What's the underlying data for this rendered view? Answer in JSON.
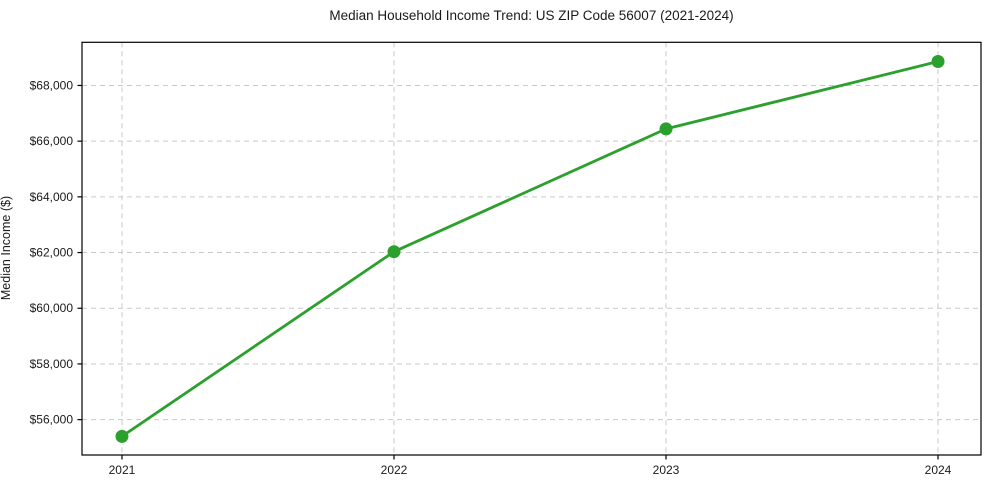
{
  "page": {
    "background_color": "#ffffff"
  },
  "chart_data": {
    "type": "line",
    "title": "Median Household Income Trend: US ZIP Code 56007 (2021-2024)",
    "xlabel": "",
    "ylabel": "Median Income ($)",
    "x": [
      2021,
      2022,
      2023,
      2024
    ],
    "values": [
      55400,
      62030,
      66440,
      68860
    ],
    "x_tick_labels": [
      "2021",
      "2022",
      "2023",
      "2024"
    ],
    "y_ticks": [
      56000,
      58000,
      60000,
      62000,
      64000,
      66000,
      68000
    ],
    "y_tick_labels": [
      "$56,000",
      "$58,000",
      "$60,000",
      "$62,000",
      "$64,000",
      "$66,000",
      "$68,000"
    ],
    "xlim": [
      2020.853,
      2024.158
    ],
    "ylim": [
      54730,
      69550
    ],
    "grid": true,
    "grid_style": "dashed",
    "legend": "none",
    "line_color": "#2ca02c",
    "marker": "circle",
    "grid_color": "#c9c9c9",
    "axis_color": "#000000",
    "text_color": "#1a1a1a"
  }
}
